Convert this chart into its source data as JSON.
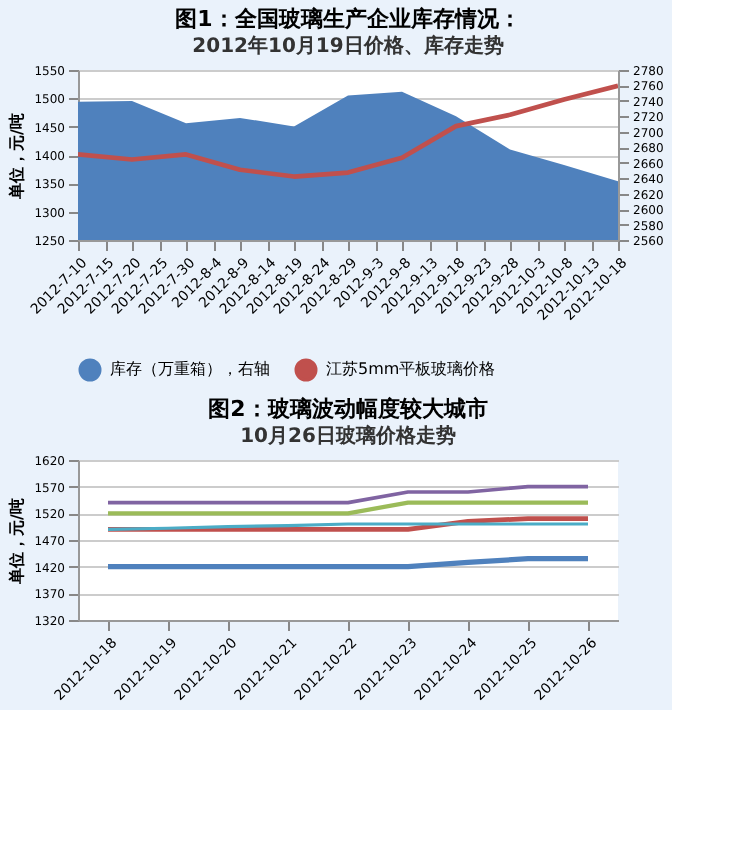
{
  "chart_data": [
    {
      "type": "area",
      "title": "图1：全国玻璃生产企业库存情况：",
      "subtitle": "2012年10月19日价格、库存走势",
      "ylabel": "单位，元/吨",
      "x": [
        "2012-07-10",
        "2012-07-20",
        "2012-07-30",
        "2012-08-09",
        "2012-08-19",
        "2012-08-29",
        "2012-09-08",
        "2012-09-18",
        "2012-09-28",
        "2012-10-08",
        "2012-10-18"
      ],
      "series": [
        {
          "name": "库存（万重箱），右轴",
          "type": "area",
          "axis": "y2",
          "color": "#4f81bd",
          "values": [
            2739,
            2740,
            2711,
            2718,
            2707,
            2747,
            2752,
            2720,
            2677,
            2657,
            2636
          ]
        },
        {
          "name": "江苏5mm平板玻璃价格",
          "type": "line",
          "color": "#c0504d",
          "values": [
            1401,
            1392,
            1401,
            1374,
            1362,
            1369,
            1395,
            1451,
            1471,
            1498,
            1522
          ]
        }
      ],
      "xlim": [
        "2012-07-10",
        "2012-10-18"
      ],
      "xticks": [
        {
          "value": "2012-07-10",
          "label": "2012-7-10"
        },
        {
          "value": "2012-07-15",
          "label": "2012-7-15"
        },
        {
          "value": "2012-07-20",
          "label": "2012-7-20"
        },
        {
          "value": "2012-07-25",
          "label": "2012-7-25"
        },
        {
          "value": "2012-07-30",
          "label": "2012-7-30"
        },
        {
          "value": "2012-08-04",
          "label": "2012-8-4"
        },
        {
          "value": "2012-08-09",
          "label": "2012-8-9"
        },
        {
          "value": "2012-08-14",
          "label": "2012-8-14"
        },
        {
          "value": "2012-08-19",
          "label": "2012-8-19"
        },
        {
          "value": "2012-08-24",
          "label": "2012-8-24"
        },
        {
          "value": "2012-08-29",
          "label": "2012-8-29"
        },
        {
          "value": "2012-09-03",
          "label": "2012-9-3"
        },
        {
          "value": "2012-09-08",
          "label": "2012-9-8"
        },
        {
          "value": "2012-09-13",
          "label": "2012-9-13"
        },
        {
          "value": "2012-09-18",
          "label": "2012-9-18"
        },
        {
          "value": "2012-09-23",
          "label": "2012-9-23"
        },
        {
          "value": "2012-09-28",
          "label": "2012-9-28"
        },
        {
          "value": "2012-10-03",
          "label": "2012-10-3"
        },
        {
          "value": "2012-10-08",
          "label": "2012-10-8"
        },
        {
          "value": "2012-10-13",
          "label": "2012-10-13"
        },
        {
          "value": "2012-10-18",
          "label": "2012-10-18"
        }
      ],
      "ylim": [
        1250,
        1550
      ],
      "yticks": [
        1250,
        1300,
        1350,
        1400,
        1450,
        1500,
        1550
      ],
      "y2lim": [
        2560,
        2780
      ],
      "y2ticks": [
        2560,
        2580,
        2600,
        2620,
        2640,
        2660,
        2680,
        2700,
        2720,
        2740,
        2760,
        2780
      ],
      "grid": "y",
      "legend": "bottom"
    },
    {
      "type": "line",
      "title": "图2：玻璃波动幅度较大城市",
      "subtitle": "10月26日玻璃价格走势",
      "ylabel": "单位，元/吨",
      "categories": [
        "2012-10-18",
        "2012-10-19",
        "2012-10-20",
        "2012-10-21",
        "2012-10-22",
        "2012-10-23",
        "2012-10-24",
        "2012-10-25",
        "2012-10-26"
      ],
      "series": [
        {
          "color": "#4f81bd",
          "values": [
            1420,
            1420,
            1420,
            1420,
            1420,
            1420,
            1428,
            1435,
            1435
          ]
        },
        {
          "color": "#c0504d",
          "values": [
            1490,
            1490,
            1490,
            1490,
            1490,
            1490,
            1505,
            1510,
            1510
          ]
        },
        {
          "color": "#9bbb59",
          "values": [
            1520,
            1520,
            1520,
            1520,
            1520,
            1540,
            1540,
            1540,
            1540
          ]
        },
        {
          "color": "#8064a2",
          "values": [
            1540,
            1540,
            1540,
            1540,
            1540,
            1560,
            1560,
            1570,
            1570
          ]
        },
        {
          "color": "#4bacc6",
          "values": [
            1490,
            1492,
            1495,
            1497,
            1500,
            1500,
            1500,
            1500,
            1500
          ]
        }
      ],
      "ylim": [
        1320,
        1620
      ],
      "yticks": [
        1320,
        1370,
        1420,
        1470,
        1520,
        1570,
        1620
      ],
      "grid": "y",
      "legend": false
    }
  ]
}
